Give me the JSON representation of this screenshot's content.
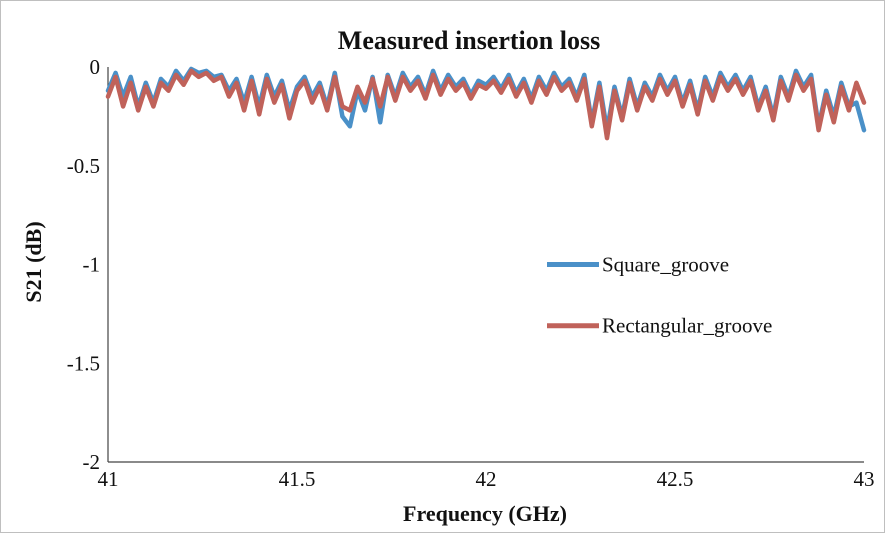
{
  "chart_data": {
    "type": "line",
    "title": "Measured insertion loss",
    "xlabel": "Frequency (GHz)",
    "ylabel": "S21 (dB)",
    "xlim": [
      41,
      43
    ],
    "ylim": [
      -2,
      0
    ],
    "xticks": [
      41,
      41.5,
      42,
      42.5,
      43
    ],
    "yticks": [
      -2,
      -1.5,
      -1,
      -0.5,
      0
    ],
    "xtick_labels": [
      "41",
      "41.5",
      "42",
      "42.5",
      "43"
    ],
    "ytick_labels": [
      "-2",
      "-1.5",
      "-1",
      "-0.5",
      "0"
    ],
    "grid": false,
    "legend": "center-right",
    "series": [
      {
        "name": "Square_groove",
        "color": "#4a90c8",
        "x": [
          41.0,
          41.02,
          41.04,
          41.06,
          41.08,
          41.1,
          41.12,
          41.14,
          41.16,
          41.18,
          41.2,
          41.22,
          41.24,
          41.26,
          41.28,
          41.3,
          41.32,
          41.34,
          41.36,
          41.38,
          41.4,
          41.42,
          41.44,
          41.46,
          41.48,
          41.5,
          41.52,
          41.54,
          41.56,
          41.58,
          41.6,
          41.62,
          41.64,
          41.66,
          41.68,
          41.7,
          41.72,
          41.74,
          41.76,
          41.78,
          41.8,
          41.82,
          41.84,
          41.86,
          41.88,
          41.9,
          41.92,
          41.94,
          41.96,
          41.98,
          42.0,
          42.02,
          42.04,
          42.06,
          42.08,
          42.1,
          42.12,
          42.14,
          42.16,
          42.18,
          42.2,
          42.22,
          42.24,
          42.26,
          42.28,
          42.3,
          42.32,
          42.34,
          42.36,
          42.38,
          42.4,
          42.42,
          42.44,
          42.46,
          42.48,
          42.5,
          42.52,
          42.54,
          42.56,
          42.58,
          42.6,
          42.62,
          42.64,
          42.66,
          42.68,
          42.7,
          42.72,
          42.74,
          42.76,
          42.78,
          42.8,
          42.82,
          42.84,
          42.86,
          42.88,
          42.9,
          42.92,
          42.94,
          42.96,
          42.98,
          43.0
        ],
        "y": [
          -0.12,
          -0.03,
          -0.15,
          -0.05,
          -0.2,
          -0.08,
          -0.18,
          -0.06,
          -0.1,
          -0.02,
          -0.07,
          -0.01,
          -0.03,
          -0.02,
          -0.05,
          -0.04,
          -0.12,
          -0.06,
          -0.18,
          -0.05,
          -0.2,
          -0.04,
          -0.15,
          -0.07,
          -0.22,
          -0.1,
          -0.05,
          -0.15,
          -0.08,
          -0.2,
          -0.03,
          -0.25,
          -0.3,
          -0.12,
          -0.22,
          -0.05,
          -0.28,
          -0.04,
          -0.15,
          -0.03,
          -0.1,
          -0.05,
          -0.14,
          -0.02,
          -0.12,
          -0.04,
          -0.1,
          -0.06,
          -0.14,
          -0.07,
          -0.09,
          -0.05,
          -0.11,
          -0.04,
          -0.13,
          -0.06,
          -0.16,
          -0.05,
          -0.12,
          -0.03,
          -0.1,
          -0.06,
          -0.15,
          -0.04,
          -0.28,
          -0.08,
          -0.32,
          -0.1,
          -0.25,
          -0.06,
          -0.2,
          -0.08,
          -0.15,
          -0.04,
          -0.12,
          -0.05,
          -0.18,
          -0.07,
          -0.22,
          -0.05,
          -0.15,
          -0.03,
          -0.1,
          -0.04,
          -0.12,
          -0.05,
          -0.2,
          -0.1,
          -0.25,
          -0.05,
          -0.15,
          -0.02,
          -0.1,
          -0.04,
          -0.3,
          -0.12,
          -0.25,
          -0.08,
          -0.2,
          -0.18,
          -0.32
        ]
      },
      {
        "name": "Rectangular_groove",
        "color": "#c0625a",
        "x": [
          41.0,
          41.02,
          41.04,
          41.06,
          41.08,
          41.1,
          41.12,
          41.14,
          41.16,
          41.18,
          41.2,
          41.22,
          41.24,
          41.26,
          41.28,
          41.3,
          41.32,
          41.34,
          41.36,
          41.38,
          41.4,
          41.42,
          41.44,
          41.46,
          41.48,
          41.5,
          41.52,
          41.54,
          41.56,
          41.58,
          41.6,
          41.62,
          41.64,
          41.66,
          41.68,
          41.7,
          41.72,
          41.74,
          41.76,
          41.78,
          41.8,
          41.82,
          41.84,
          41.86,
          41.88,
          41.9,
          41.92,
          41.94,
          41.96,
          41.98,
          42.0,
          42.02,
          42.04,
          42.06,
          42.08,
          42.1,
          42.12,
          42.14,
          42.16,
          42.18,
          42.2,
          42.22,
          42.24,
          42.26,
          42.28,
          42.3,
          42.32,
          42.34,
          42.36,
          42.38,
          42.4,
          42.42,
          42.44,
          42.46,
          42.48,
          42.5,
          42.52,
          42.54,
          42.56,
          42.58,
          42.6,
          42.62,
          42.64,
          42.66,
          42.68,
          42.7,
          42.72,
          42.74,
          42.76,
          42.78,
          42.8,
          42.82,
          42.84,
          42.86,
          42.88,
          42.9,
          42.92,
          42.94,
          42.96,
          42.98,
          43.0
        ],
        "y": [
          -0.15,
          -0.05,
          -0.2,
          -0.08,
          -0.22,
          -0.1,
          -0.2,
          -0.08,
          -0.12,
          -0.04,
          -0.09,
          -0.02,
          -0.05,
          -0.03,
          -0.07,
          -0.05,
          -0.15,
          -0.08,
          -0.22,
          -0.07,
          -0.24,
          -0.06,
          -0.18,
          -0.09,
          -0.26,
          -0.12,
          -0.07,
          -0.18,
          -0.1,
          -0.22,
          -0.05,
          -0.2,
          -0.22,
          -0.1,
          -0.18,
          -0.06,
          -0.2,
          -0.05,
          -0.17,
          -0.05,
          -0.12,
          -0.07,
          -0.16,
          -0.04,
          -0.14,
          -0.06,
          -0.12,
          -0.08,
          -0.16,
          -0.09,
          -0.11,
          -0.07,
          -0.13,
          -0.06,
          -0.15,
          -0.08,
          -0.18,
          -0.07,
          -0.14,
          -0.05,
          -0.12,
          -0.08,
          -0.17,
          -0.06,
          -0.3,
          -0.1,
          -0.36,
          -0.12,
          -0.27,
          -0.08,
          -0.22,
          -0.1,
          -0.17,
          -0.06,
          -0.14,
          -0.07,
          -0.2,
          -0.09,
          -0.24,
          -0.07,
          -0.17,
          -0.05,
          -0.12,
          -0.06,
          -0.14,
          -0.07,
          -0.22,
          -0.12,
          -0.27,
          -0.07,
          -0.17,
          -0.04,
          -0.12,
          -0.06,
          -0.32,
          -0.14,
          -0.28,
          -0.1,
          -0.22,
          -0.08,
          -0.18
        ]
      }
    ]
  }
}
